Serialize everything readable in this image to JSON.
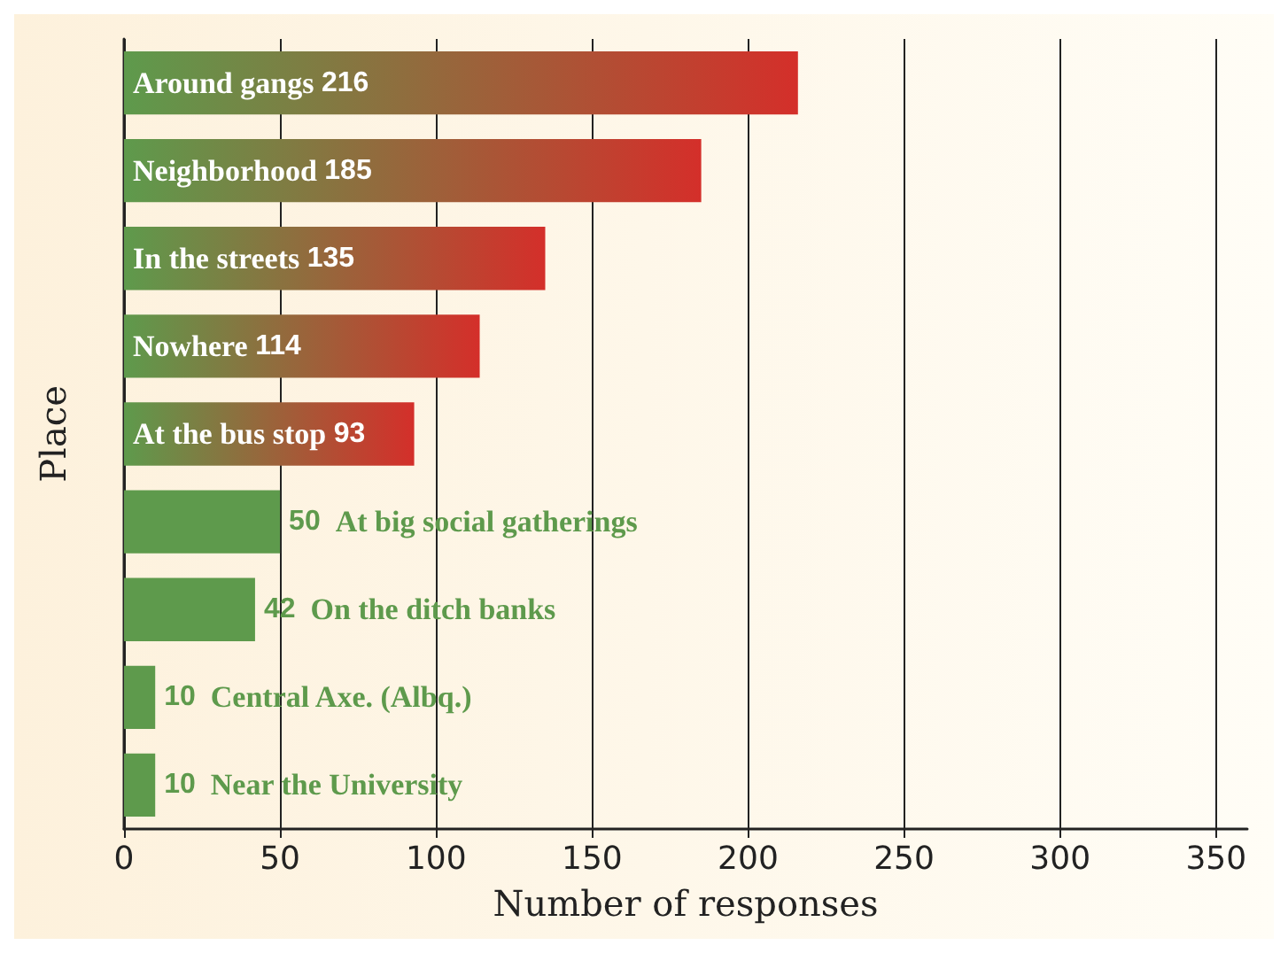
{
  "chart_data": {
    "type": "bar",
    "orientation": "horizontal",
    "xlabel": "Number of responses",
    "ylabel": "Place",
    "categories": [
      "Around gangs",
      "Neighborhood",
      "In the streets",
      "Nowhere",
      "At the bus stop",
      "At big social gatherings",
      "On the ditch banks",
      "Central Axe. (Albq.)",
      "Near the University"
    ],
    "values": [
      216,
      185,
      135,
      114,
      93,
      50,
      42,
      10,
      10
    ],
    "color": "#5e9a4c",
    "colors": [
      "#d42f2a",
      "#d42f2a",
      "#d42f2a",
      "#d42f2a",
      "#d42f2a",
      "#5e9a4c",
      "#5e9a4c",
      "#5e9a4c",
      "#5e9a4c"
    ],
    "xlim": [
      0,
      360
    ],
    "xticks": [
      0,
      50,
      100,
      150,
      200,
      250,
      300,
      350
    ],
    "grid": "x",
    "tick_labels": "x",
    "data_labels": true
  }
}
